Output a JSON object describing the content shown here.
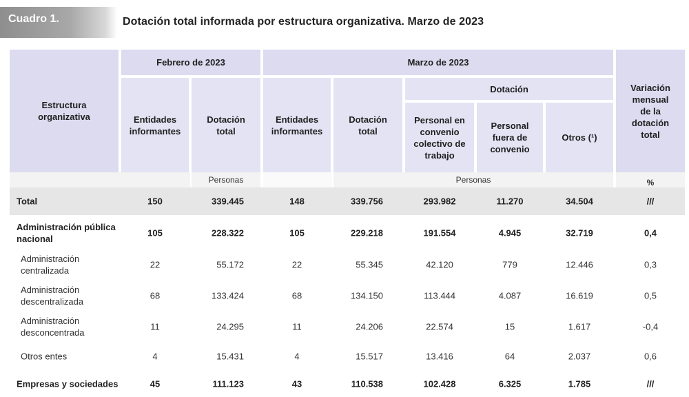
{
  "header": {
    "badge": "Cuadro 1.",
    "title": "Dotación total informada por estructura organizativa. Marzo de 2023"
  },
  "columns": {
    "estructura": "Estructura organizativa",
    "feb_group": "Febrero de 2023",
    "mar_group": "Marzo de 2023",
    "dotacion_group": "Dotación",
    "entidades": "Entidades informantes",
    "dotacion_total": "Dotación total",
    "personal_convenio": "Personal en convenio colectivo de trabajo",
    "personal_fuera": "Personal fuera de convenio",
    "otros": "Otros (¹)",
    "variacion": "Variación mensual de la dotación total"
  },
  "units": {
    "feb_personas": "Personas",
    "mar_personas": "Personas",
    "pct": "%"
  },
  "rows": [
    {
      "label": "Total",
      "style": "total",
      "values": [
        "150",
        "339.445",
        "148",
        "339.756",
        "293.982",
        "11.270",
        "34.504",
        "///"
      ]
    },
    {
      "label": "Administración pública nacional",
      "style": "bold",
      "values": [
        "105",
        "228.322",
        "105",
        "229.218",
        "191.554",
        "4.945",
        "32.719",
        "0,4"
      ]
    },
    {
      "label": "Administración centralizada",
      "style": "sub",
      "values": [
        "22",
        "55.172",
        "22",
        "55.345",
        "42.120",
        "779",
        "12.446",
        "0,3"
      ]
    },
    {
      "label": "Administración descentralizada",
      "style": "sub",
      "values": [
        "68",
        "133.424",
        "68",
        "134.150",
        "113.444",
        "4.087",
        "16.619",
        "0,5"
      ]
    },
    {
      "label": "Administración desconcentrada",
      "style": "sub",
      "values": [
        "11",
        "24.295",
        "11",
        "24.206",
        "22.574",
        "15",
        "1.617",
        "-0,4"
      ]
    },
    {
      "label": "Otros entes",
      "style": "sub",
      "values": [
        "4",
        "15.431",
        "4",
        "15.517",
        "13.416",
        "64",
        "2.037",
        "0,6"
      ]
    },
    {
      "label": "Empresas y sociedades",
      "style": "bold",
      "values": [
        "45",
        "111.123",
        "43",
        "110.538",
        "102.428",
        "6.325",
        "1.785",
        "///"
      ]
    }
  ]
}
